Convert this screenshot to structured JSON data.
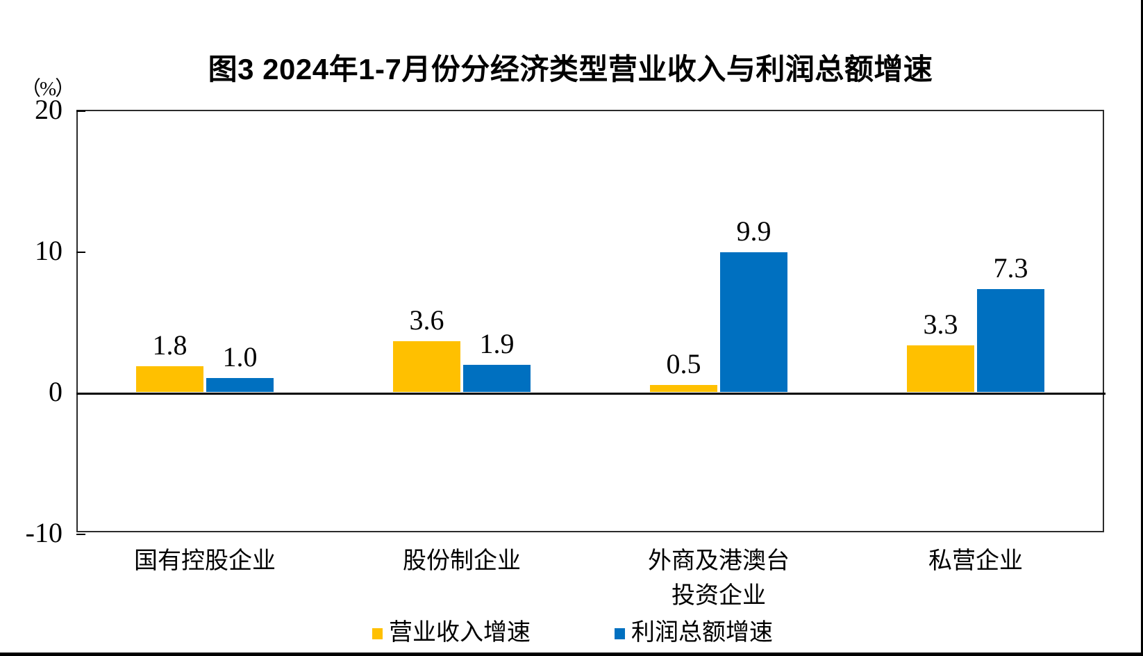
{
  "chart_data": {
    "type": "bar",
    "title": "图3  2024年1-7月份分经济类型营业收入与利润总额增速",
    "unit_label": "（%）",
    "categories": [
      [
        "国有控股企业"
      ],
      [
        "股份制企业"
      ],
      [
        "外商及港澳台",
        "投资企业"
      ],
      [
        "私营企业"
      ]
    ],
    "series": [
      {
        "name": "营业收入增速",
        "color": "#FFC000",
        "values": [
          1.8,
          3.6,
          0.5,
          3.3
        ]
      },
      {
        "name": "利润总额增速",
        "color": "#0070C0",
        "values": [
          1.0,
          1.9,
          9.9,
          7.3
        ]
      }
    ],
    "value_label_format": "0.0",
    "ylim": [
      -10,
      20
    ],
    "yticks": [
      20,
      10,
      0,
      -10
    ],
    "grid": false,
    "legend_position": "bottom-center",
    "bar_colors": {
      "revenue": "#FFC000",
      "profit": "#0070C0"
    },
    "axis_color": "#000000",
    "text_color": "#000000"
  }
}
